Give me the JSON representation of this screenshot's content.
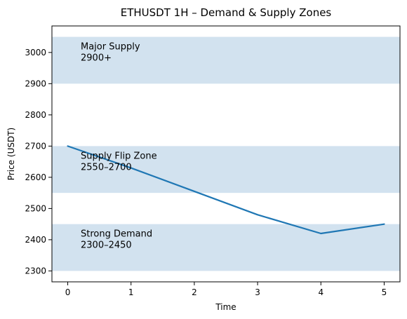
{
  "chart_data": {
    "type": "line",
    "title": "ETHUSDT 1H – Demand & Supply Zones",
    "xlabel": "Time",
    "ylabel": "Price (USDT)",
    "x": [
      0,
      1,
      2,
      3,
      4,
      5
    ],
    "series": [
      {
        "values": [
          2700,
          2630,
          2555,
          2480,
          2420,
          2450
        ],
        "color": "#1f77b4"
      }
    ],
    "xlim": [
      -0.25,
      5.25
    ],
    "ylim": [
      2265,
      3085
    ],
    "xticks": [
      "0",
      "1",
      "2",
      "3",
      "4",
      "5"
    ],
    "yticks": [
      "2300",
      "2400",
      "2500",
      "2600",
      "2700",
      "2800",
      "2900",
      "3000"
    ],
    "grid": false,
    "zones": [
      {
        "name": "Major Supply",
        "range_label": "2900+",
        "low": 2900,
        "high": 3050
      },
      {
        "name": "Supply Flip Zone",
        "range_label": "2550–2700",
        "low": 2550,
        "high": 2700
      },
      {
        "name": "Strong Demand",
        "range_label": "2300–2450",
        "low": 2300,
        "high": 2450
      }
    ],
    "zone_color": "#d2e2ef"
  }
}
